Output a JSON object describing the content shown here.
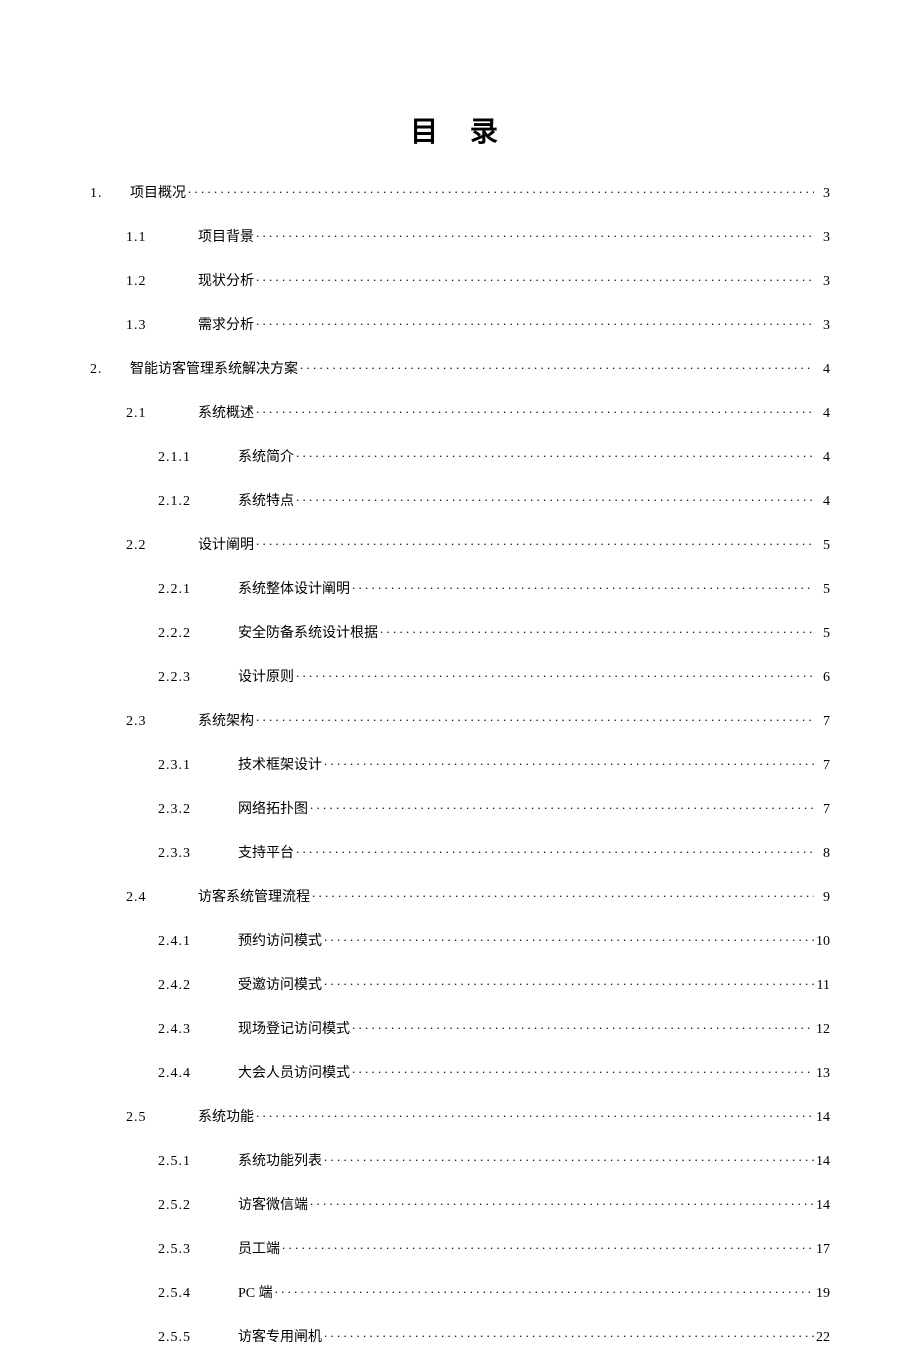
{
  "title": "目 录",
  "text_color": "#000000",
  "background_color": "#ffffff",
  "title_fontsize": 28,
  "line_fontsize": 14,
  "entries": [
    {
      "level": 1,
      "num": "1.",
      "label": "项目概况",
      "page": "3"
    },
    {
      "level": 2,
      "num": "1.1",
      "label": "项目背景",
      "page": "3"
    },
    {
      "level": 2,
      "num": "1.2",
      "label": "现状分析",
      "page": "3"
    },
    {
      "level": 2,
      "num": "1.3",
      "label": "需求分析",
      "page": "3"
    },
    {
      "level": 1,
      "num": "2.",
      "label": "智能访客管理系统解决方案",
      "page": "4"
    },
    {
      "level": 2,
      "num": "2.1",
      "label": "系统概述",
      "page": "4"
    },
    {
      "level": 3,
      "num": "2.1.1",
      "label": "系统简介",
      "page": "4"
    },
    {
      "level": 3,
      "num": "2.1.2",
      "label": "系统特点",
      "page": "4"
    },
    {
      "level": 2,
      "num": "2.2",
      "label": "设计阐明",
      "page": "5"
    },
    {
      "level": 3,
      "num": "2.2.1",
      "label": "系统整体设计阐明",
      "page": "5"
    },
    {
      "level": 3,
      "num": "2.2.2",
      "label": "安全防备系统设计根据",
      "page": "5"
    },
    {
      "level": 3,
      "num": "2.2.3",
      "label": "设计原则",
      "page": "6"
    },
    {
      "level": 2,
      "num": "2.3",
      "label": "系统架构",
      "page": "7"
    },
    {
      "level": 3,
      "num": "2.3.1",
      "label": "技术框架设计",
      "page": "7"
    },
    {
      "level": 3,
      "num": "2.3.2",
      "label": "网络拓扑图",
      "page": "7"
    },
    {
      "level": 3,
      "num": "2.3.3",
      "label": "支持平台",
      "page": "8"
    },
    {
      "level": 2,
      "num": "2.4",
      "label": "访客系统管理流程",
      "page": "9"
    },
    {
      "level": 3,
      "num": "2.4.1",
      "label": "预约访问模式",
      "page": "10"
    },
    {
      "level": 3,
      "num": "2.4.2",
      "label": "受邀访问模式",
      "page": "11"
    },
    {
      "level": 3,
      "num": "2.4.3",
      "label": "现场登记访问模式",
      "page": "12"
    },
    {
      "level": 3,
      "num": "2.4.4",
      "label": "大会人员访问模式",
      "page": "13"
    },
    {
      "level": 2,
      "num": "2.5",
      "label": "系统功能",
      "page": "14"
    },
    {
      "level": 3,
      "num": "2.5.1",
      "label": "系统功能列表",
      "page": "14"
    },
    {
      "level": 3,
      "num": "2.5.2",
      "label": "访客微信端",
      "page": "14"
    },
    {
      "level": 3,
      "num": "2.5.3",
      "label": "员工端",
      "page": "17"
    },
    {
      "level": 3,
      "num": "2.5.4",
      "label": "PC 端",
      "page": "19"
    },
    {
      "level": 3,
      "num": "2.5.5",
      "label": "访客专用闸机",
      "page": "22"
    }
  ]
}
